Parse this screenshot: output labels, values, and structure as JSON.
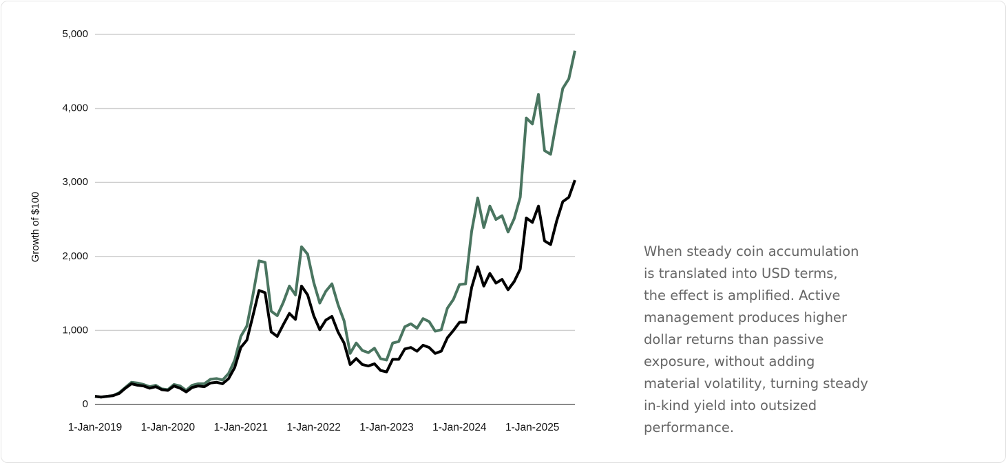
{
  "chart_data": {
    "type": "line",
    "y_label": "Growth of $100",
    "categories": [
      "1-Jan-2019",
      null,
      null,
      null,
      null,
      null,
      null,
      null,
      null,
      null,
      null,
      null,
      "1-Jan-2020",
      null,
      null,
      null,
      null,
      null,
      null,
      null,
      null,
      null,
      null,
      null,
      "1-Jan-2021",
      null,
      null,
      null,
      null,
      null,
      null,
      null,
      null,
      null,
      null,
      null,
      "1-Jan-2022",
      null,
      null,
      null,
      null,
      null,
      null,
      null,
      null,
      null,
      null,
      null,
      "1-Jan-2023",
      null,
      null,
      null,
      null,
      null,
      null,
      null,
      null,
      null,
      null,
      null,
      "1-Jan-2024",
      null,
      null,
      null,
      null,
      null,
      null,
      null,
      null,
      null,
      null,
      null,
      "1-Jan-2025",
      null,
      null,
      null,
      null,
      null,
      null,
      null
    ],
    "series": [
      {
        "color": "#4a7560",
        "values": [
          110,
          100,
          110,
          120,
          160,
          230,
          300,
          290,
          270,
          240,
          260,
          210,
          200,
          270,
          250,
          190,
          260,
          280,
          280,
          340,
          350,
          330,
          420,
          600,
          920,
          1060,
          1480,
          1940,
          1920,
          1260,
          1200,
          1380,
          1600,
          1480,
          2130,
          2030,
          1650,
          1370,
          1530,
          1630,
          1350,
          1130,
          690,
          830,
          730,
          700,
          760,
          620,
          600,
          830,
          850,
          1050,
          1090,
          1030,
          1160,
          1120,
          990,
          1010,
          1300,
          1420,
          1620,
          1630,
          2340,
          2790,
          2390,
          2680,
          2500,
          2550,
          2330,
          2510,
          2800,
          3870,
          3790,
          4190,
          3430,
          3380,
          3840,
          4270,
          4400,
          4780
        ]
      },
      {
        "color": "#000000",
        "values": [
          110,
          100,
          110,
          120,
          150,
          220,
          280,
          260,
          250,
          220,
          240,
          200,
          190,
          250,
          220,
          170,
          230,
          250,
          240,
          290,
          300,
          280,
          350,
          500,
          770,
          870,
          1200,
          1540,
          1510,
          980,
          920,
          1080,
          1230,
          1150,
          1600,
          1480,
          1200,
          1010,
          1140,
          1190,
          980,
          830,
          540,
          620,
          540,
          520,
          550,
          460,
          440,
          610,
          610,
          750,
          770,
          720,
          800,
          770,
          690,
          720,
          900,
          1000,
          1110,
          1110,
          1580,
          1860,
          1600,
          1770,
          1640,
          1690,
          1550,
          1660,
          1830,
          2520,
          2460,
          2680,
          2210,
          2160,
          2480,
          2740,
          2800,
          3030
        ]
      }
    ],
    "ylim": [
      0,
      5000
    ],
    "yticks": [
      0,
      {
        "value": 1000,
        "label": "1,000"
      },
      {
        "value": 2000,
        "label": "2,000"
      },
      {
        "value": 3000,
        "label": "3,000"
      },
      {
        "value": 4000,
        "label": "4,000"
      },
      {
        "value": 5000,
        "label": "5,000"
      }
    ],
    "grid": true
  },
  "text_panel": {
    "lines": [
      "When steady coin accumulation",
      "is translated into USD terms,",
      "the effect is amplified. Active",
      "management produces higher",
      "dollar returns than passive",
      "exposure, without adding",
      "material volatility, turning steady",
      "in-kind yield into outsized",
      "performance."
    ]
  }
}
